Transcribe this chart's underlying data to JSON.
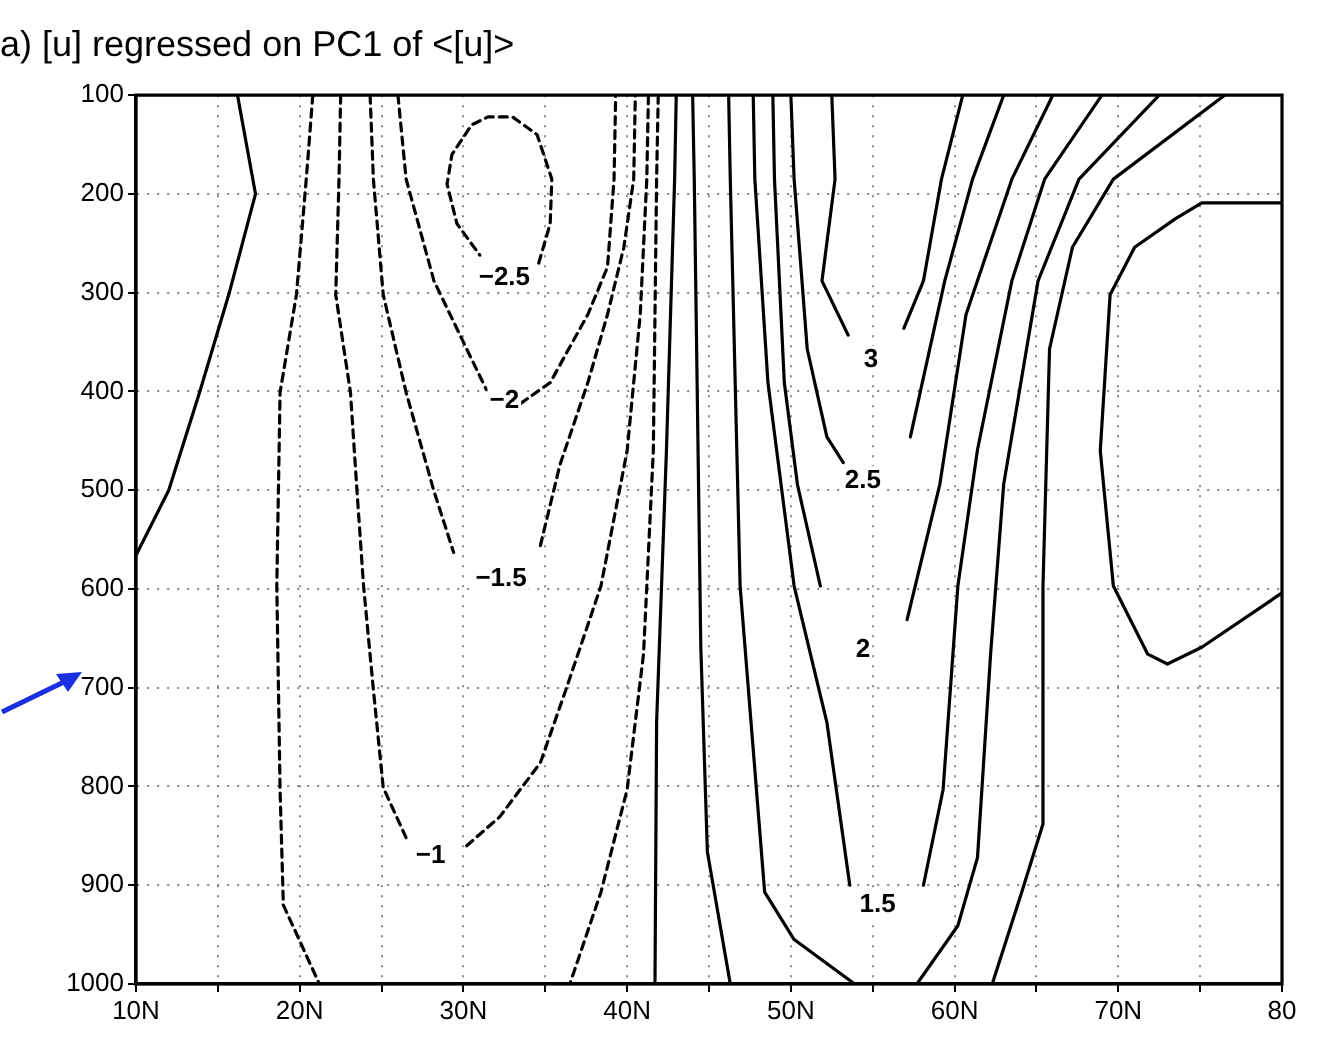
{
  "chart_data": {
    "type": "line",
    "title": "a) [u] regressed on PC1 of <[u]>",
    "xlim": [
      10,
      80
    ],
    "xticks": [
      {
        "value": 10,
        "label": "10N"
      },
      {
        "value": 15,
        "label": null
      },
      {
        "value": 20,
        "label": "20N"
      },
      {
        "value": 25,
        "label": null
      },
      {
        "value": 30,
        "label": "30N"
      },
      {
        "value": 35,
        "label": null
      },
      {
        "value": 40,
        "label": "40N"
      },
      {
        "value": 45,
        "label": null
      },
      {
        "value": 50,
        "label": "50N"
      },
      {
        "value": 55,
        "label": null
      },
      {
        "value": 60,
        "label": "60N"
      },
      {
        "value": 65,
        "label": null
      },
      {
        "value": 70,
        "label": "70N"
      },
      {
        "value": 75,
        "label": null
      },
      {
        "value": 80,
        "label": "80"
      }
    ],
    "ylim": [
      1000,
      100
    ],
    "yticks": [
      100,
      200,
      300,
      400,
      500,
      600,
      700,
      800,
      900,
      1000
    ],
    "grid": true,
    "legend": false,
    "marker": "none",
    "series": [
      {
        "color": "#000000",
        "line_style": "solid",
        "x": [
          16.2,
          17.3,
          15.7,
          13.9,
          12,
          10
        ],
        "values": [
          100,
          200,
          300,
          400,
          500,
          566
        ]
      },
      {
        "color": "#000000",
        "line_style": "solid",
        "x": [
          43,
          42.9,
          42.4,
          41.8,
          41.7
        ],
        "values": [
          100,
          185,
          460,
          735,
          1000
        ]
      },
      {
        "color": "#000000",
        "line_style": "solid",
        "x": [
          80,
          75.1,
          73.5,
          71,
          69.5,
          68.9,
          69.7,
          71.8,
          73,
          75.1,
          80
        ],
        "values": [
          209,
          209,
          225,
          254,
          302,
          460,
          597,
          666,
          676,
          659,
          604
        ]
      },
      {
        "color": "#000000",
        "line_style": "dashed",
        "x": [
          20.8,
          20.4,
          19.8,
          18.8,
          18.6,
          18.8,
          19,
          21.2
        ],
        "values": [
          100,
          185,
          302,
          401,
          597,
          803,
          920,
          1000
        ]
      },
      {
        "color": "#000000",
        "line_style": "dashed",
        "x": [
          41.9,
          41.8,
          41.6,
          41,
          40,
          38.4,
          36.5
        ],
        "values": [
          100,
          185,
          460,
          666,
          803,
          907,
          1000
        ]
      },
      {
        "color": "#000000",
        "line_style": "dashed",
        "x": [
          22.5,
          22.4,
          22.2,
          23.1,
          23.5,
          23.9,
          24.5,
          25.1,
          26.5,
          28,
          30.2,
          32.2,
          34.7,
          36.3,
          38.4,
          40,
          40.8,
          41.2,
          41.3
        ],
        "values": [
          100,
          185,
          302,
          401,
          501,
          597,
          702,
          801,
          852,
          null,
          860,
          831,
          776,
          700,
          597,
          460,
          322,
          185,
          100
        ]
      },
      {
        "color": "#000000",
        "line_style": "dashed",
        "x": [
          24.3,
          24.5,
          25.1,
          26.5,
          28.2,
          29.4,
          31.8,
          34.7,
          35.9,
          37.6,
          38.8,
          39.8,
          40.4,
          40.5
        ],
        "values": [
          100,
          185,
          302,
          401,
          501,
          563,
          null,
          556,
          474,
          391,
          322,
          254,
          185,
          100
        ]
      },
      {
        "color": "#000000",
        "line_style": "dashed",
        "x": [
          26,
          26.5,
          28.2,
          30.2,
          31.4,
          32.5,
          33.5,
          35.3,
          37.6,
          38.8,
          39.2,
          39.3
        ],
        "values": [
          100,
          185,
          288,
          357,
          398,
          null,
          412,
          391,
          322,
          274,
          185,
          100
        ]
      },
      {
        "color": "#000000",
        "line_style": "dashed",
        "x": [
          34.6,
          35.3,
          35.4,
          34.5,
          33,
          31.5,
          30.5,
          29.3,
          29,
          29.6,
          31
        ],
        "values": [
          270,
          230,
          185,
          140,
          122,
          122,
          130,
          160,
          190,
          230,
          262
        ]
      },
      {
        "color": "#000000",
        "line_style": "solid",
        "x": [
          44,
          44.1,
          44.5,
          44.9,
          46.3
        ],
        "values": [
          100,
          185,
          659,
          866,
          1000
        ]
      },
      {
        "color": "#000000",
        "line_style": "solid",
        "x": [
          76.5,
          69.7,
          67.2,
          65.8,
          65.4,
          65.4,
          64.1,
          62.3
        ],
        "values": [
          100,
          185,
          254,
          357,
          597,
          838,
          907,
          1000
        ]
      },
      {
        "color": "#000000",
        "line_style": "solid",
        "x": [
          46.2,
          46.3,
          46.9,
          48.4,
          50.2,
          53.9
        ],
        "values": [
          100,
          185,
          597,
          907,
          955,
          1000
        ]
      },
      {
        "color": "#000000",
        "line_style": "solid",
        "x": [
          72.5,
          67.6,
          65.1,
          63,
          62.2,
          61.4,
          60.2,
          57.7
        ],
        "values": [
          100,
          185,
          288,
          494,
          666,
          872,
          941,
          1000
        ]
      },
      {
        "color": "#000000",
        "line_style": "solid",
        "x": [
          47.7,
          47.8,
          48.6,
          50.2,
          52.2,
          53.6,
          55.3,
          58.1,
          59.3,
          60.2,
          61.4,
          63.5,
          65.5,
          69
        ],
        "values": [
          100,
          185,
          391,
          597,
          735,
          900,
          null,
          900,
          803,
          597,
          459,
          288,
          185,
          100
        ]
      },
      {
        "color": "#000000",
        "line_style": "solid",
        "x": [
          48.9,
          49,
          49.6,
          50.4,
          51.8,
          54.4,
          57.1,
          59.1,
          60.7,
          63.5,
          66
        ],
        "values": [
          100,
          185,
          391,
          494,
          597,
          null,
          631,
          494,
          322,
          185,
          100
        ]
      },
      {
        "color": "#000000",
        "line_style": "solid",
        "x": [
          50,
          50.2,
          51,
          52.2,
          53.2,
          54.4,
          57.3,
          59.4,
          61.1,
          63
        ],
        "values": [
          100,
          185,
          357,
          446,
          472,
          null,
          446,
          288,
          185,
          100
        ]
      },
      {
        "color": "#000000",
        "line_style": "solid",
        "x": [
          52.5,
          52.7,
          51.9,
          53.5,
          54.9,
          56.9,
          58.1,
          59.2,
          60.5
        ],
        "values": [
          100,
          185,
          288,
          343,
          null,
          336,
          288,
          185,
          100
        ]
      }
    ],
    "annotations": [
      {
        "text": "−2.5",
        "x": 32.5,
        "y": 285
      },
      {
        "text": "−2",
        "x": 32.5,
        "y": 410
      },
      {
        "text": "−1.5",
        "x": 32.3,
        "y": 590
      },
      {
        "text": "−1",
        "x": 28,
        "y": 870
      },
      {
        "text": "3",
        "x": 54.9,
        "y": 368
      },
      {
        "text": "2.5",
        "x": 54.4,
        "y": 490
      },
      {
        "text": "2",
        "x": 54.4,
        "y": 662
      },
      {
        "text": "1.5",
        "x": 55.3,
        "y": 920
      }
    ]
  }
}
